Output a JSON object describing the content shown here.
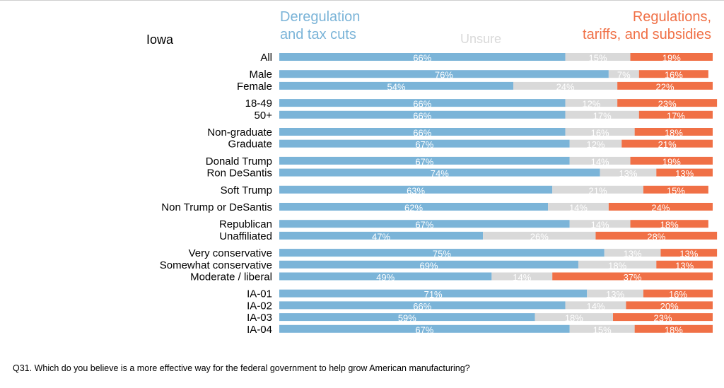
{
  "chart_data": {
    "type": "bar",
    "orientation": "horizontal",
    "stacked": true,
    "title": "Iowa",
    "legend": {
      "placement": "top",
      "entries": [
        {
          "line1": "Deregulation",
          "line2": "and tax cuts"
        },
        {
          "line1": "Unsure",
          "line2": ""
        },
        {
          "line1": "Regulations,",
          "line2": "tariffs, and subsidies"
        }
      ]
    },
    "colors": [
      "#7bb4d8",
      "#d9d9d9",
      "#f07046"
    ],
    "xlim": [
      0,
      100
    ],
    "grid": false,
    "categories": [
      "All",
      "Male",
      "Female",
      "18-49",
      "50+",
      "Non-graduate",
      "Graduate",
      "Donald Trump",
      "Ron DeSantis",
      "Soft Trump",
      "Non Trump or DeSantis",
      "Republican",
      "Unaffiliated",
      "Very conservative",
      "Somewhat conservative",
      "Moderate / liberal",
      "IA-01",
      "IA-02",
      "IA-03",
      "IA-04"
    ],
    "groups": [
      [
        0
      ],
      [
        1,
        2
      ],
      [
        3,
        4
      ],
      [
        5,
        6
      ],
      [
        7,
        8
      ],
      [
        9
      ],
      [
        10
      ],
      [
        11,
        12
      ],
      [
        13,
        14,
        15
      ],
      [
        16,
        17,
        18,
        19
      ]
    ],
    "series": [
      {
        "name": "Deregulation and tax cuts",
        "values": [
          66,
          76,
          54,
          66,
          66,
          66,
          67,
          67,
          74,
          63,
          62,
          67,
          47,
          75,
          69,
          49,
          71,
          66,
          59,
          67
        ]
      },
      {
        "name": "Unsure",
        "values": [
          15,
          7,
          24,
          12,
          17,
          16,
          12,
          14,
          13,
          21,
          14,
          14,
          26,
          13,
          18,
          14,
          13,
          14,
          18,
          15
        ]
      },
      {
        "name": "Regulations, tariffs, and subsidies",
        "values": [
          19,
          16,
          22,
          23,
          17,
          18,
          21,
          19,
          13,
          15,
          24,
          18,
          28,
          13,
          13,
          37,
          16,
          20,
          23,
          18
        ]
      }
    ],
    "value_format": "%"
  },
  "footnote": "Q31. Which do you believe is a more effective way for the federal government to help grow American manufacturing?"
}
